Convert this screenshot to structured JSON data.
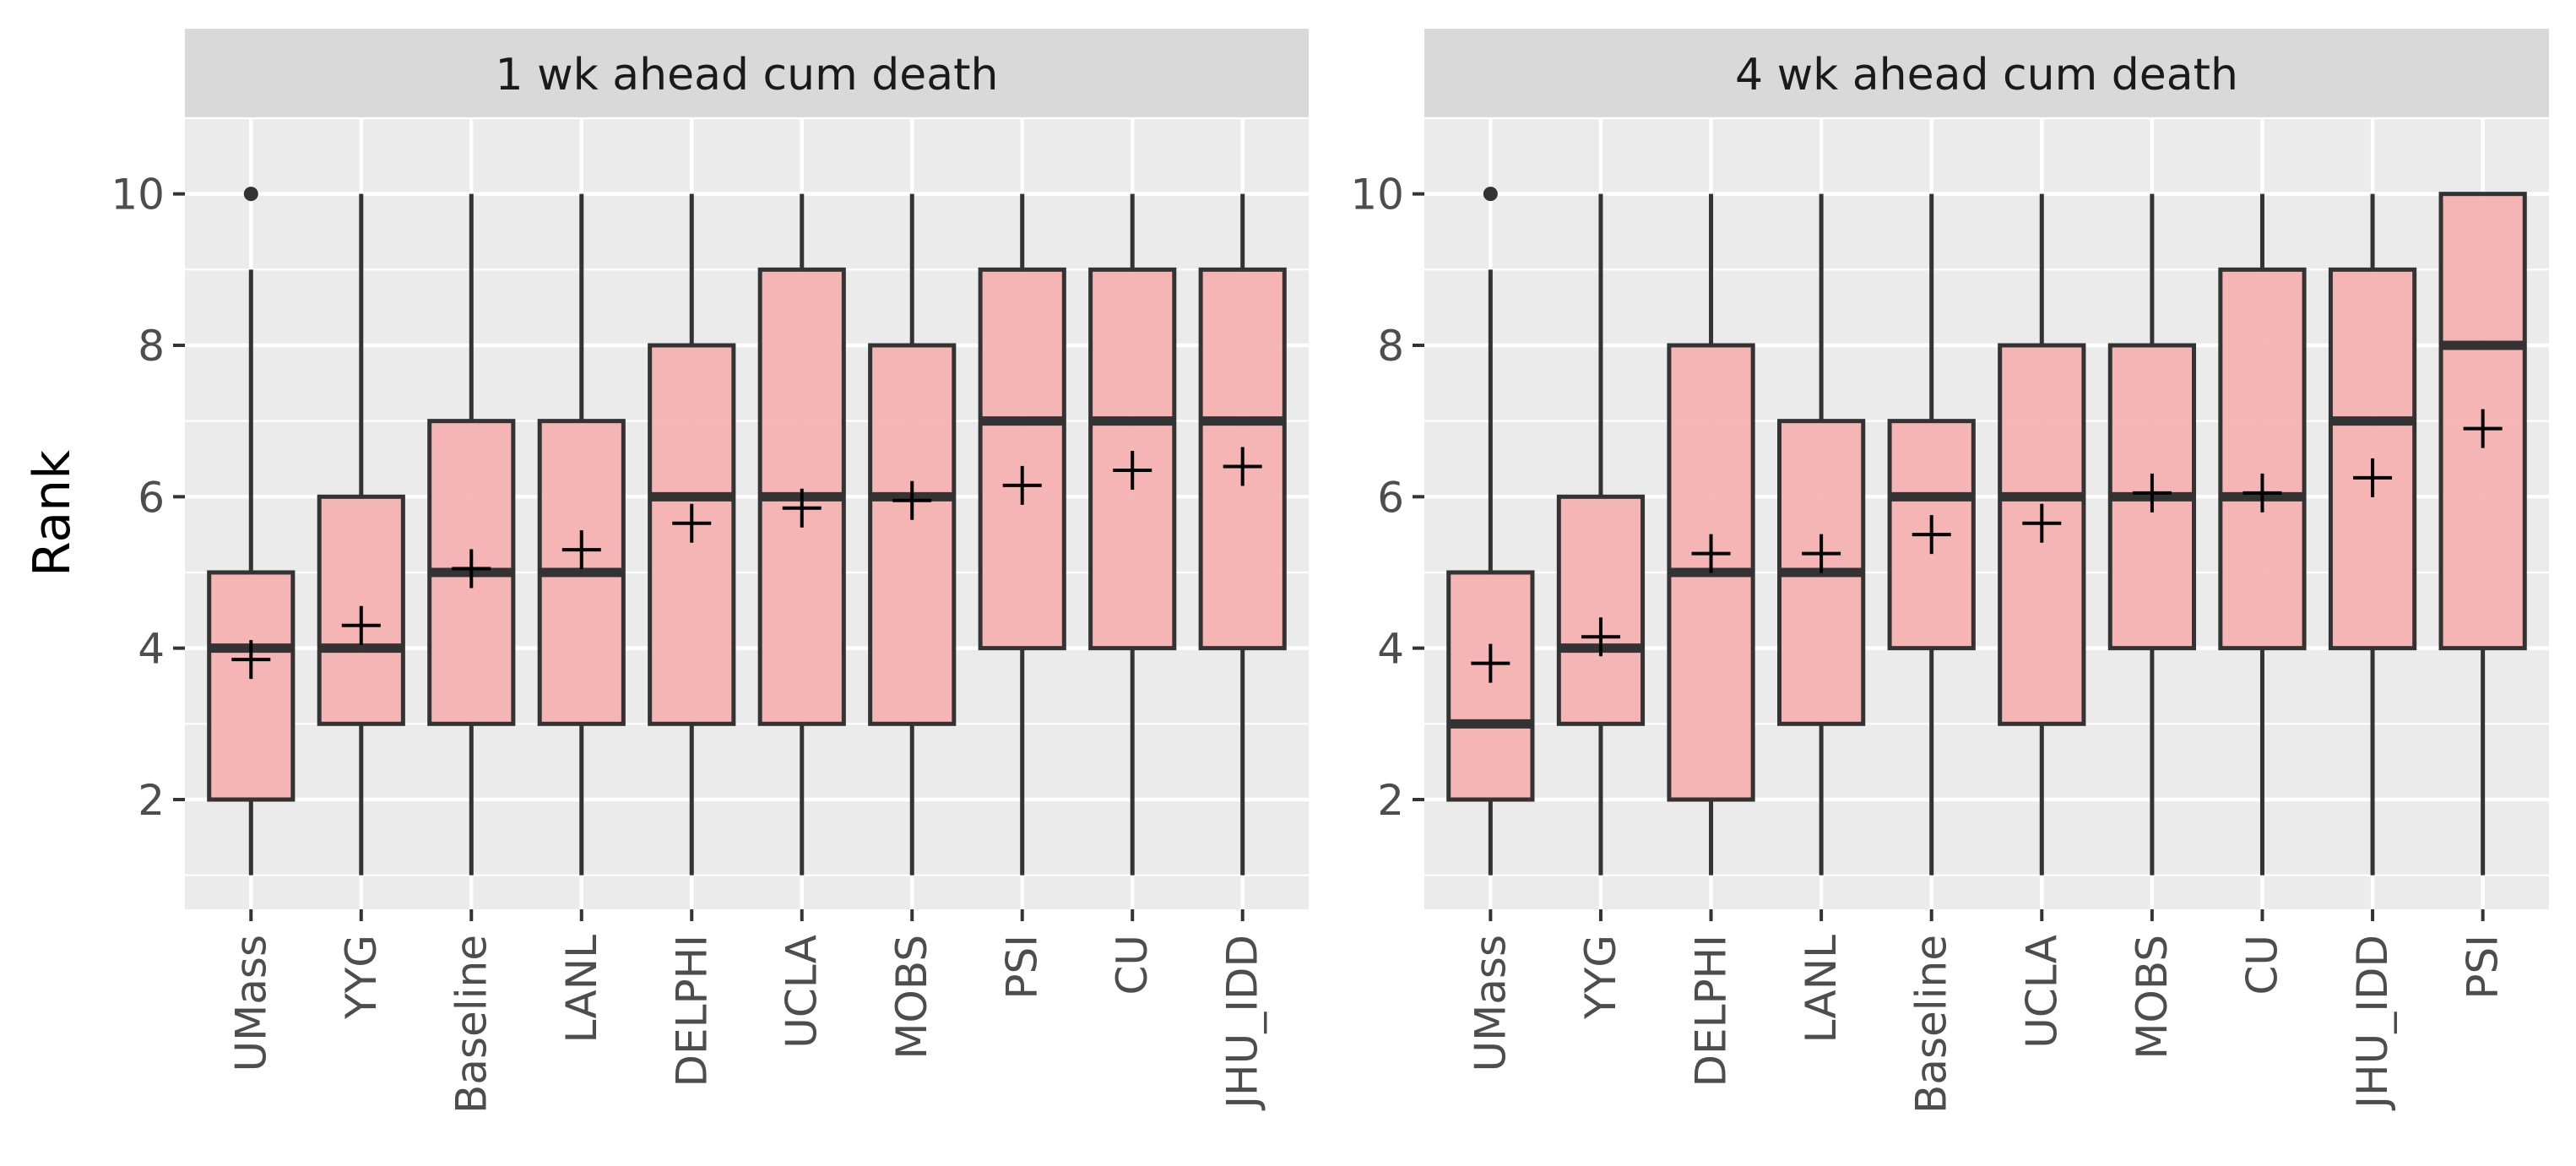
{
  "chart_data": {
    "type": "box",
    "ylabel": "Rank",
    "y_ticks": [
      2,
      4,
      6,
      8,
      10
    ],
    "ylim": [
      0.55,
      11.0
    ],
    "grid": true,
    "colors": {
      "panel_bg": "#EBEBEB",
      "strip_bg": "#D9D9D9",
      "grid": "#FFFFFF",
      "box_fill": "#F4B0AF",
      "box_stroke": "#333333",
      "mean_marker": "#000000"
    },
    "panels": [
      {
        "title": "1 wk ahead cum death",
        "boxes": [
          {
            "label": "UMass",
            "min": 1,
            "q1": 2,
            "median": 4,
            "q3": 5,
            "max": 9,
            "mean": 3.85,
            "outliers": [
              10
            ]
          },
          {
            "label": "YYG",
            "min": 1,
            "q1": 3,
            "median": 4,
            "q3": 6,
            "max": 10,
            "mean": 4.3,
            "outliers": []
          },
          {
            "label": "Baseline",
            "min": 1,
            "q1": 3,
            "median": 5,
            "q3": 7,
            "max": 10,
            "mean": 5.05,
            "outliers": []
          },
          {
            "label": "LANL",
            "min": 1,
            "q1": 3,
            "median": 5,
            "q3": 7,
            "max": 10,
            "mean": 5.3,
            "outliers": []
          },
          {
            "label": "DELPHI",
            "min": 1,
            "q1": 3,
            "median": 6,
            "q3": 8,
            "max": 10,
            "mean": 5.65,
            "outliers": []
          },
          {
            "label": "UCLA",
            "min": 1,
            "q1": 3,
            "median": 6,
            "q3": 9,
            "max": 10,
            "mean": 5.85,
            "outliers": []
          },
          {
            "label": "MOBS",
            "min": 1,
            "q1": 3,
            "median": 6,
            "q3": 8,
            "max": 10,
            "mean": 5.95,
            "outliers": []
          },
          {
            "label": "PSI",
            "min": 1,
            "q1": 4,
            "median": 7,
            "q3": 9,
            "max": 10,
            "mean": 6.15,
            "outliers": []
          },
          {
            "label": "CU",
            "min": 1,
            "q1": 4,
            "median": 7,
            "q3": 9,
            "max": 10,
            "mean": 6.35,
            "outliers": []
          },
          {
            "label": "JHU_IDD",
            "min": 1,
            "q1": 4,
            "median": 7,
            "q3": 9,
            "max": 10,
            "mean": 6.4,
            "outliers": []
          }
        ]
      },
      {
        "title": "4 wk ahead cum death",
        "boxes": [
          {
            "label": "UMass",
            "min": 1,
            "q1": 2,
            "median": 3,
            "q3": 5,
            "max": 9,
            "mean": 3.8,
            "outliers": [
              10
            ]
          },
          {
            "label": "YYG",
            "min": 1,
            "q1": 3,
            "median": 4,
            "q3": 6,
            "max": 10,
            "mean": 4.15,
            "outliers": []
          },
          {
            "label": "DELPHI",
            "min": 1,
            "q1": 2,
            "median": 5,
            "q3": 8,
            "max": 10,
            "mean": 5.25,
            "outliers": []
          },
          {
            "label": "LANL",
            "min": 1,
            "q1": 3,
            "median": 5,
            "q3": 7,
            "max": 10,
            "mean": 5.25,
            "outliers": []
          },
          {
            "label": "Baseline",
            "min": 1,
            "q1": 4,
            "median": 6,
            "q3": 7,
            "max": 10,
            "mean": 5.5,
            "outliers": []
          },
          {
            "label": "UCLA",
            "min": 1,
            "q1": 3,
            "median": 6,
            "q3": 8,
            "max": 10,
            "mean": 5.65,
            "outliers": []
          },
          {
            "label": "MOBS",
            "min": 1,
            "q1": 4,
            "median": 6,
            "q3": 8,
            "max": 10,
            "mean": 6.05,
            "outliers": []
          },
          {
            "label": "CU",
            "min": 1,
            "q1": 4,
            "median": 6,
            "q3": 9,
            "max": 10,
            "mean": 6.05,
            "outliers": []
          },
          {
            "label": "JHU_IDD",
            "min": 1,
            "q1": 4,
            "median": 7,
            "q3": 9,
            "max": 10,
            "mean": 6.25,
            "outliers": []
          },
          {
            "label": "PSI",
            "min": 1,
            "q1": 4,
            "median": 8,
            "q3": 10,
            "max": 10,
            "mean": 6.9,
            "outliers": []
          }
        ]
      }
    ]
  }
}
